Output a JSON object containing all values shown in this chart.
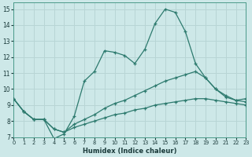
{
  "xlabel": "Humidex (Indice chaleur)",
  "bg_color": "#cde8e8",
  "line_color": "#2d7a6e",
  "grid_color": "#b8d5d5",
  "xlim": [
    0,
    23
  ],
  "ylim": [
    7,
    15.4
  ],
  "yticks": [
    7,
    8,
    9,
    10,
    11,
    12,
    13,
    14,
    15
  ],
  "xticks": [
    0,
    1,
    2,
    3,
    4,
    5,
    6,
    7,
    8,
    9,
    10,
    11,
    12,
    13,
    14,
    15,
    16,
    17,
    18,
    19,
    20,
    21,
    22,
    23
  ],
  "x": [
    0,
    1,
    2,
    3,
    4,
    5,
    6,
    7,
    8,
    9,
    10,
    11,
    12,
    13,
    14,
    15,
    16,
    17,
    18,
    19,
    20,
    21,
    22,
    23
  ],
  "line1": [
    9.4,
    8.6,
    8.1,
    8.1,
    6.9,
    7.2,
    8.3,
    10.5,
    11.1,
    12.4,
    12.3,
    12.1,
    11.6,
    12.5,
    14.1,
    15.0,
    14.8,
    13.6,
    11.6,
    10.7,
    10.0,
    9.5,
    9.3,
    9.4
  ],
  "line2": [
    9.4,
    8.6,
    8.1,
    8.1,
    7.5,
    7.3,
    7.8,
    8.1,
    8.4,
    8.8,
    9.1,
    9.3,
    9.6,
    9.9,
    10.2,
    10.5,
    10.7,
    10.9,
    11.1,
    10.7,
    10.0,
    9.6,
    9.3,
    9.2
  ],
  "line3": [
    9.4,
    8.6,
    8.1,
    8.1,
    7.5,
    7.3,
    7.6,
    7.8,
    8.0,
    8.2,
    8.4,
    8.5,
    8.7,
    8.8,
    9.0,
    9.1,
    9.2,
    9.3,
    9.4,
    9.4,
    9.3,
    9.2,
    9.1,
    9.0
  ]
}
